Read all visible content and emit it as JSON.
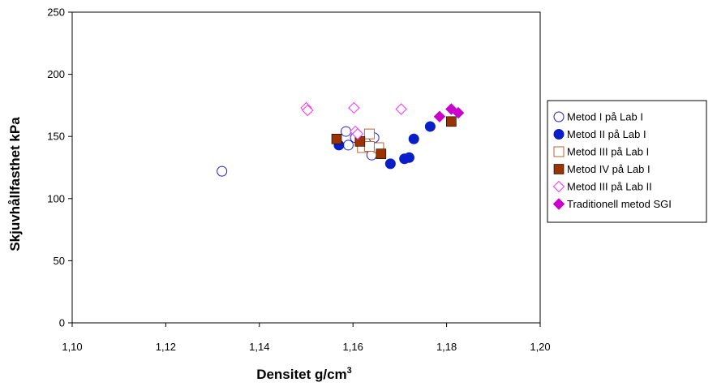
{
  "chart_data": {
    "type": "scatter",
    "xlabel": "Densitet g/cm",
    "xlabel_sup": "3",
    "ylabel": "Skjuvhållfasthet kPa",
    "xlim": [
      1.1,
      1.2
    ],
    "ylim": [
      0,
      250
    ],
    "xticks": [
      1.1,
      1.12,
      1.14,
      1.16,
      1.18,
      1.2
    ],
    "xtick_labels": [
      "1,10",
      "1,12",
      "1,14",
      "1,16",
      "1,18",
      "1,20"
    ],
    "yticks": [
      0,
      50,
      100,
      150,
      200,
      250
    ],
    "ytick_labels": [
      "0",
      "50",
      "100",
      "150",
      "200",
      "250"
    ],
    "grid": false,
    "legend_position": "right",
    "series": [
      {
        "name": "Metod I på Lab I",
        "marker": "circle-open",
        "color": "#1f1fcc",
        "points": [
          [
            1.132,
            122
          ],
          [
            1.1585,
            154
          ],
          [
            1.159,
            143
          ],
          [
            1.1605,
            149
          ],
          [
            1.164,
            135
          ],
          [
            1.1645,
            149
          ],
          [
            1.1655,
            141
          ]
        ]
      },
      {
        "name": "Metod II på Lab I",
        "marker": "circle-filled",
        "color": "#0a1ec8",
        "points": [
          [
            1.157,
            143
          ],
          [
            1.168,
            128
          ],
          [
            1.171,
            132
          ],
          [
            1.172,
            133
          ],
          [
            1.173,
            148
          ],
          [
            1.1765,
            158
          ]
        ]
      },
      {
        "name": "Metod III på Lab I",
        "marker": "square-open",
        "color": "#b5653a",
        "points": [
          [
            1.162,
            141
          ],
          [
            1.1635,
            152
          ],
          [
            1.1655,
            141
          ],
          [
            1.1635,
            142
          ]
        ]
      },
      {
        "name": "Metod IV på Lab I",
        "marker": "square-filled",
        "color": "#993300",
        "points": [
          [
            1.1565,
            148
          ],
          [
            1.1615,
            146
          ],
          [
            1.166,
            136
          ],
          [
            1.181,
            162
          ]
        ]
      },
      {
        "name": "Metod III på Lab II",
        "marker": "diamond-open",
        "color": "#ff33ff",
        "points": [
          [
            1.15,
            173
          ],
          [
            1.1503,
            171
          ],
          [
            1.1602,
            173
          ],
          [
            1.1605,
            154
          ],
          [
            1.161,
            152
          ],
          [
            1.1703,
            172
          ]
        ]
      },
      {
        "name": "Traditionell metod SGI",
        "marker": "diamond-filled",
        "color": "#cc00cc",
        "points": [
          [
            1.1785,
            166
          ],
          [
            1.181,
            172
          ],
          [
            1.1825,
            169
          ]
        ]
      }
    ]
  }
}
